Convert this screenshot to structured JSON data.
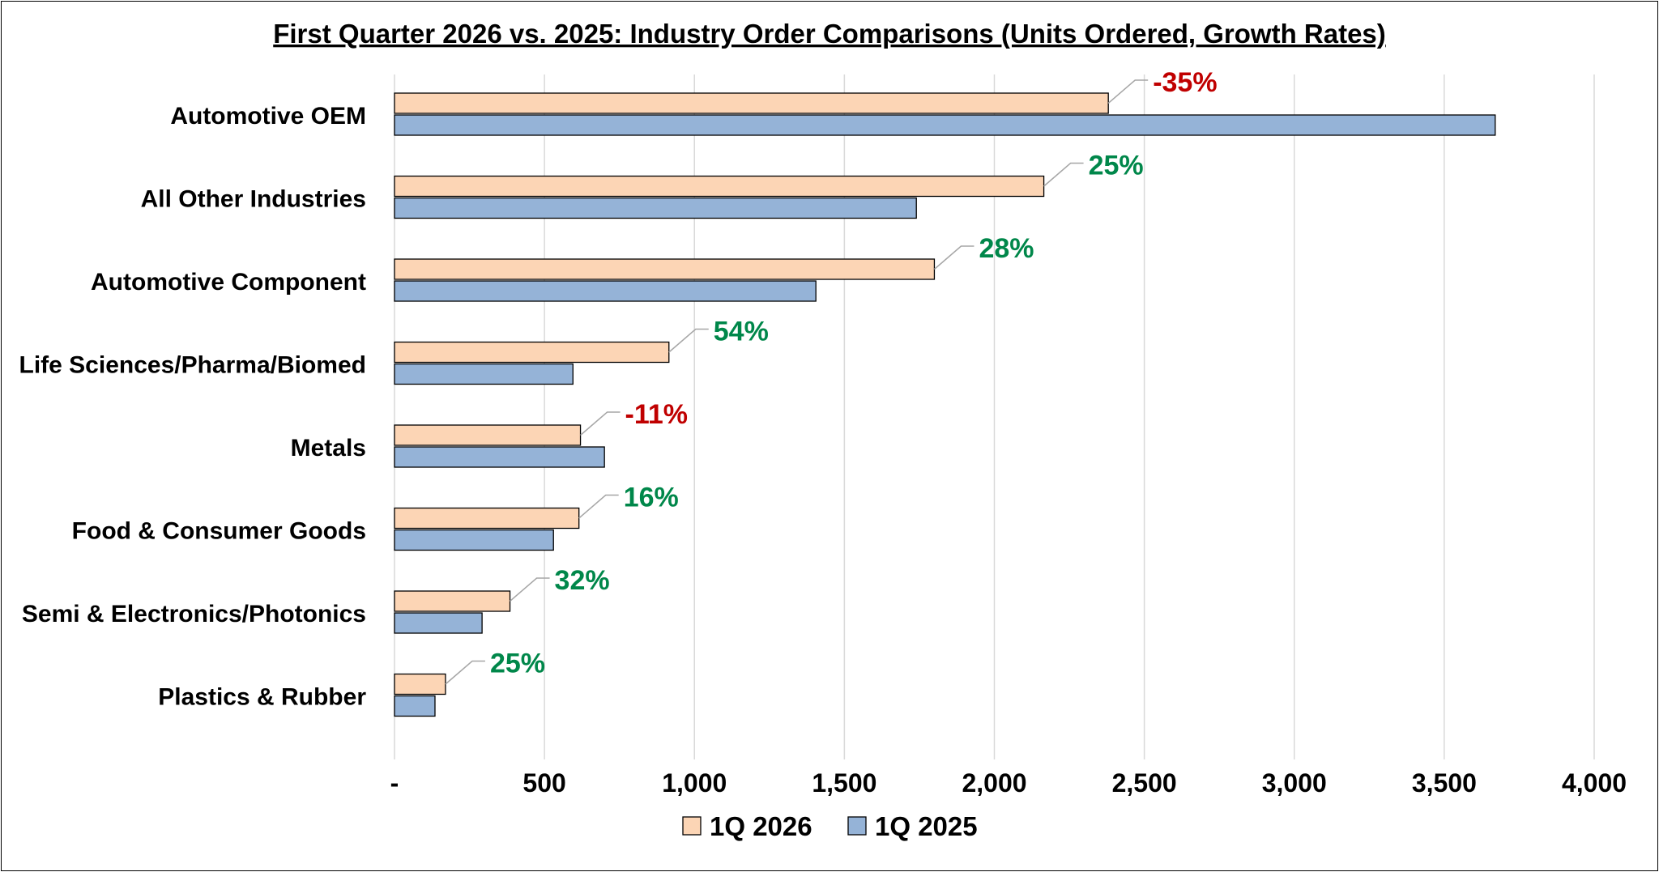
{
  "chart_data": {
    "type": "bar",
    "orientation": "horizontal",
    "title": "First Quarter 2026 vs. 2025: Industry Order Comparisons (Units Ordered, Growth Rates)",
    "categories": [
      "Automotive OEM",
      "All Other Industries",
      "Automotive Component",
      "Life Sciences/Pharma/Biomed",
      "Metals",
      "Food & Consumer Goods",
      "Semi & Electronics/Photonics",
      "Plastics & Rubber"
    ],
    "series": [
      {
        "name": "1Q 2026",
        "color": "#FCD5B5",
        "values": [
          2380,
          2165,
          1800,
          915,
          620,
          615,
          385,
          170
        ]
      },
      {
        "name": "1Q 2025",
        "color": "#95B3D7",
        "values": [
          3670,
          1740,
          1405,
          595,
          700,
          530,
          292,
          135
        ]
      }
    ],
    "growth_labels": [
      "-35%",
      "25%",
      "28%",
      "54%",
      "-11%",
      "16%",
      "32%",
      "25%"
    ],
    "growth_colors": {
      "positive": "#00874A",
      "negative": "#C00000"
    },
    "xlim": [
      0,
      4000
    ],
    "xticks": [
      0,
      500,
      1000,
      1500,
      2000,
      2500,
      3000,
      3500,
      4000
    ],
    "xtick_labels": [
      "-",
      "500",
      "1,000",
      "1,500",
      "2,000",
      "2,500",
      "3,000",
      "3,500",
      "4,000"
    ],
    "xlabel": "",
    "ylabel": "",
    "grid": "vertical",
    "legend_position": "bottom"
  }
}
